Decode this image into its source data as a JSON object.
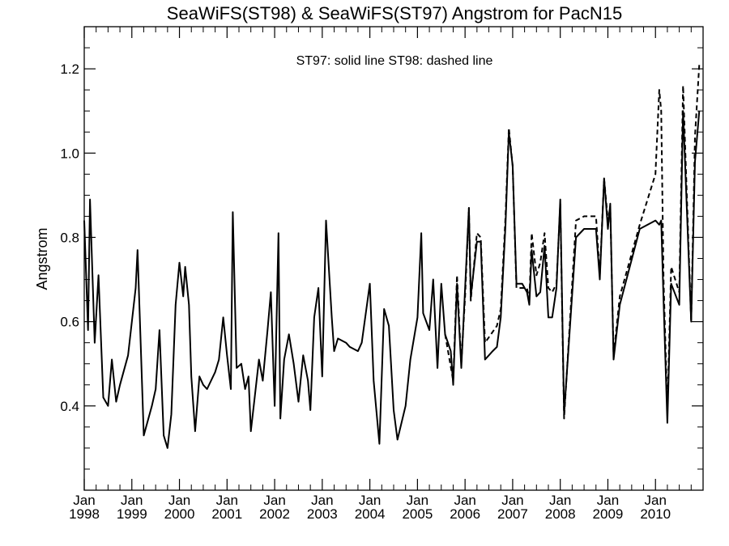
{
  "chart_data": {
    "type": "line",
    "title": "SeaWiFS(ST98) & SeaWiFS(ST97)  Angstrom for PacN15",
    "annotation": "ST97: solid line   ST98: dashed line",
    "xlabel": "",
    "ylabel": "Angstrom",
    "xlim": [
      1998.0,
      2011.0
    ],
    "ylim": [
      0.2,
      1.3
    ],
    "yticks": [
      0.4,
      0.6,
      0.8,
      1.0,
      1.2
    ],
    "xticks": [
      {
        "x": 1998,
        "month": "Jan",
        "year": "1998"
      },
      {
        "x": 1999,
        "month": "Jan",
        "year": "1999"
      },
      {
        "x": 2000,
        "month": "Jan",
        "year": "2000"
      },
      {
        "x": 2001,
        "month": "Jan",
        "year": "2001"
      },
      {
        "x": 2002,
        "month": "Jan",
        "year": "2002"
      },
      {
        "x": 2003,
        "month": "Jan",
        "year": "2003"
      },
      {
        "x": 2004,
        "month": "Jan",
        "year": "2004"
      },
      {
        "x": 2005,
        "month": "Jan",
        "year": "2005"
      },
      {
        "x": 2006,
        "month": "Jan",
        "year": "2006"
      },
      {
        "x": 2007,
        "month": "Jan",
        "year": "2007"
      },
      {
        "x": 2008,
        "month": "Jan",
        "year": "2008"
      },
      {
        "x": 2009,
        "month": "Jan",
        "year": "2009"
      },
      {
        "x": 2010,
        "month": "Jan",
        "year": "2010"
      }
    ],
    "series": [
      {
        "name": "ST97",
        "style": "solid",
        "points": [
          [
            1998.0,
            0.84
          ],
          [
            1998.08,
            0.58
          ],
          [
            1998.12,
            0.89
          ],
          [
            1998.22,
            0.55
          ],
          [
            1998.3,
            0.71
          ],
          [
            1998.4,
            0.42
          ],
          [
            1998.5,
            0.4
          ],
          [
            1998.58,
            0.51
          ],
          [
            1998.67,
            0.41
          ],
          [
            1998.75,
            0.45
          ],
          [
            1998.92,
            0.52
          ],
          [
            1999.08,
            0.68
          ],
          [
            1999.12,
            0.77
          ],
          [
            1999.25,
            0.33
          ],
          [
            1999.42,
            0.4
          ],
          [
            1999.5,
            0.44
          ],
          [
            1999.58,
            0.58
          ],
          [
            1999.67,
            0.33
          ],
          [
            1999.75,
            0.3
          ],
          [
            1999.83,
            0.38
          ],
          [
            1999.92,
            0.64
          ],
          [
            2000.0,
            0.74
          ],
          [
            2000.08,
            0.66
          ],
          [
            2000.12,
            0.73
          ],
          [
            2000.2,
            0.64
          ],
          [
            2000.25,
            0.47
          ],
          [
            2000.33,
            0.34
          ],
          [
            2000.42,
            0.47
          ],
          [
            2000.5,
            0.45
          ],
          [
            2000.58,
            0.44
          ],
          [
            2000.75,
            0.48
          ],
          [
            2000.83,
            0.51
          ],
          [
            2000.92,
            0.61
          ],
          [
            2001.0,
            0.52
          ],
          [
            2001.08,
            0.44
          ],
          [
            2001.12,
            0.86
          ],
          [
            2001.2,
            0.49
          ],
          [
            2001.3,
            0.5
          ],
          [
            2001.38,
            0.44
          ],
          [
            2001.45,
            0.47
          ],
          [
            2001.5,
            0.34
          ],
          [
            2001.6,
            0.44
          ],
          [
            2001.67,
            0.51
          ],
          [
            2001.75,
            0.46
          ],
          [
            2001.85,
            0.58
          ],
          [
            2001.92,
            0.67
          ],
          [
            2002.0,
            0.4
          ],
          [
            2002.08,
            0.81
          ],
          [
            2002.12,
            0.37
          ],
          [
            2002.2,
            0.51
          ],
          [
            2002.3,
            0.57
          ],
          [
            2002.4,
            0.5
          ],
          [
            2002.5,
            0.41
          ],
          [
            2002.6,
            0.52
          ],
          [
            2002.7,
            0.46
          ],
          [
            2002.75,
            0.39
          ],
          [
            2002.83,
            0.61
          ],
          [
            2002.92,
            0.68
          ],
          [
            2003.0,
            0.47
          ],
          [
            2003.08,
            0.84
          ],
          [
            2003.2,
            0.61
          ],
          [
            2003.25,
            0.53
          ],
          [
            2003.33,
            0.56
          ],
          [
            2003.5,
            0.55
          ],
          [
            2003.58,
            0.54
          ],
          [
            2003.75,
            0.53
          ],
          [
            2003.83,
            0.55
          ],
          [
            2004.0,
            0.69
          ],
          [
            2004.08,
            0.46
          ],
          [
            2004.2,
            0.31
          ],
          [
            2004.3,
            0.63
          ],
          [
            2004.4,
            0.59
          ],
          [
            2004.5,
            0.39
          ],
          [
            2004.58,
            0.32
          ],
          [
            2004.75,
            0.4
          ],
          [
            2004.85,
            0.51
          ],
          [
            2005.0,
            0.61
          ],
          [
            2005.08,
            0.81
          ],
          [
            2005.12,
            0.62
          ],
          [
            2005.25,
            0.58
          ],
          [
            2005.33,
            0.7
          ],
          [
            2005.42,
            0.49
          ],
          [
            2005.5,
            0.69
          ],
          [
            2005.58,
            0.57
          ],
          [
            2005.7,
            0.53
          ],
          [
            2005.75,
            0.45
          ],
          [
            2005.83,
            0.69
          ],
          [
            2005.92,
            0.49
          ],
          [
            2006.0,
            0.68
          ],
          [
            2006.08,
            0.87
          ],
          [
            2006.12,
            0.66
          ],
          [
            2006.25,
            0.79
          ],
          [
            2006.33,
            0.79
          ],
          [
            2006.42,
            0.51
          ],
          [
            2006.5,
            0.52
          ],
          [
            2006.58,
            0.53
          ],
          [
            2006.67,
            0.54
          ],
          [
            2006.75,
            0.61
          ],
          [
            2006.85,
            0.83
          ],
          [
            2006.92,
            1.05
          ],
          [
            2007.0,
            0.97
          ],
          [
            2007.08,
            0.69
          ],
          [
            2007.2,
            0.69
          ],
          [
            2007.3,
            0.67
          ],
          [
            2007.35,
            0.64
          ],
          [
            2007.4,
            0.77
          ],
          [
            2007.5,
            0.66
          ],
          [
            2007.58,
            0.67
          ],
          [
            2007.67,
            0.78
          ],
          [
            2007.75,
            0.61
          ],
          [
            2007.83,
            0.61
          ],
          [
            2007.92,
            0.68
          ],
          [
            2008.0,
            0.89
          ],
          [
            2008.08,
            0.38
          ],
          [
            2008.33,
            0.8
          ],
          [
            2008.5,
            0.82
          ],
          [
            2008.67,
            0.82
          ],
          [
            2008.75,
            0.82
          ],
          [
            2008.83,
            0.7
          ],
          [
            2008.92,
            0.94
          ],
          [
            2009.0,
            0.82
          ],
          [
            2009.05,
            0.88
          ],
          [
            2009.12,
            0.51
          ],
          [
            2009.25,
            0.64
          ],
          [
            2009.67,
            0.82
          ],
          [
            2010.0,
            0.84
          ],
          [
            2010.08,
            0.83
          ],
          [
            2010.12,
            0.84
          ],
          [
            2010.17,
            0.65
          ],
          [
            2010.25,
            0.36
          ],
          [
            2010.33,
            0.69
          ],
          [
            2010.5,
            0.64
          ],
          [
            2010.58,
            1.1
          ],
          [
            2010.75,
            0.6
          ],
          [
            2010.83,
            0.98
          ],
          [
            2010.92,
            1.1
          ]
        ]
      },
      {
        "name": "ST98",
        "style": "dashed",
        "points": [
          [
            2005.58,
            0.57
          ],
          [
            2005.75,
            0.46
          ],
          [
            2005.83,
            0.71
          ],
          [
            2005.92,
            0.5
          ],
          [
            2006.0,
            0.66
          ],
          [
            2006.08,
            0.87
          ],
          [
            2006.12,
            0.65
          ],
          [
            2006.25,
            0.81
          ],
          [
            2006.33,
            0.8
          ],
          [
            2006.42,
            0.55
          ],
          [
            2006.67,
            0.59
          ],
          [
            2006.75,
            0.63
          ],
          [
            2006.85,
            0.85
          ],
          [
            2006.92,
            1.06
          ],
          [
            2007.0,
            0.97
          ],
          [
            2007.08,
            0.68
          ],
          [
            2007.2,
            0.68
          ],
          [
            2007.3,
            0.68
          ],
          [
            2007.35,
            0.65
          ],
          [
            2007.4,
            0.81
          ],
          [
            2007.5,
            0.71
          ],
          [
            2007.58,
            0.74
          ],
          [
            2007.67,
            0.81
          ],
          [
            2007.75,
            0.68
          ],
          [
            2007.83,
            0.67
          ],
          [
            2007.92,
            0.69
          ],
          [
            2008.0,
            0.88
          ],
          [
            2008.08,
            0.37
          ],
          [
            2008.33,
            0.84
          ],
          [
            2008.5,
            0.85
          ],
          [
            2008.67,
            0.85
          ],
          [
            2008.75,
            0.85
          ],
          [
            2008.83,
            0.71
          ],
          [
            2008.92,
            0.94
          ],
          [
            2009.0,
            0.84
          ],
          [
            2009.05,
            0.87
          ],
          [
            2009.12,
            0.52
          ],
          [
            2009.25,
            0.66
          ],
          [
            2009.67,
            0.83
          ],
          [
            2010.0,
            0.95
          ],
          [
            2010.08,
            1.15
          ],
          [
            2010.12,
            1.1
          ],
          [
            2010.17,
            0.7
          ],
          [
            2010.25,
            0.39
          ],
          [
            2010.33,
            0.73
          ],
          [
            2010.5,
            0.67
          ],
          [
            2010.58,
            1.16
          ],
          [
            2010.75,
            0.6
          ],
          [
            2010.83,
            1.04
          ],
          [
            2010.92,
            1.21
          ]
        ]
      }
    ]
  }
}
